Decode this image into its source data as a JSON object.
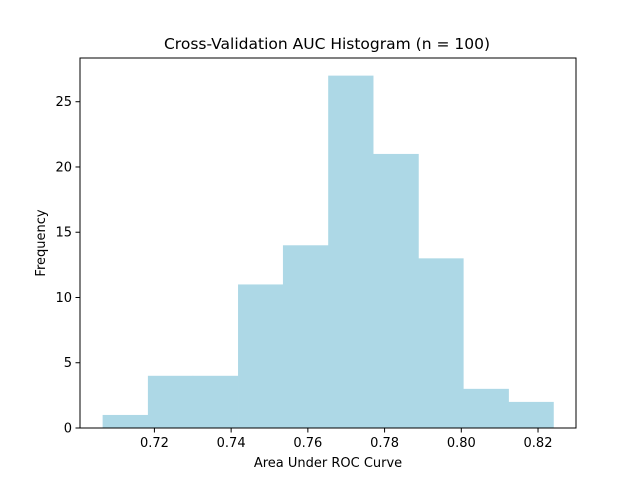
{
  "chart_data": {
    "type": "bar",
    "title": "Cross-Validation AUC Histogram (n = 100)",
    "xlabel": "Area Under ROC Curve",
    "ylabel": "Frequency",
    "bar_color": "#add8e6",
    "bins": [
      {
        "x0": 0.7065,
        "x1": 0.7183,
        "count": 1
      },
      {
        "x0": 0.7183,
        "x1": 0.73,
        "count": 4
      },
      {
        "x0": 0.73,
        "x1": 0.7418,
        "count": 4
      },
      {
        "x0": 0.7418,
        "x1": 0.7535,
        "count": 11
      },
      {
        "x0": 0.7535,
        "x1": 0.7653,
        "count": 14
      },
      {
        "x0": 0.7653,
        "x1": 0.777,
        "count": 27
      },
      {
        "x0": 0.777,
        "x1": 0.7888,
        "count": 21
      },
      {
        "x0": 0.7888,
        "x1": 0.8005,
        "count": 13
      },
      {
        "x0": 0.8005,
        "x1": 0.8123,
        "count": 3
      },
      {
        "x0": 0.8123,
        "x1": 0.824,
        "count": 2
      }
    ],
    "xlim": [
      0.7006,
      0.8299
    ],
    "ylim": [
      0,
      28.35
    ],
    "xticks": [
      0.72,
      0.74,
      0.76,
      0.78,
      0.8,
      0.82
    ],
    "xtick_labels": [
      "0.72",
      "0.74",
      "0.76",
      "0.78",
      "0.80",
      "0.82"
    ],
    "yticks": [
      0,
      5,
      10,
      15,
      20,
      25
    ],
    "ytick_labels": [
      "0",
      "5",
      "10",
      "15",
      "20",
      "25"
    ],
    "grid": false,
    "legend": "none"
  }
}
